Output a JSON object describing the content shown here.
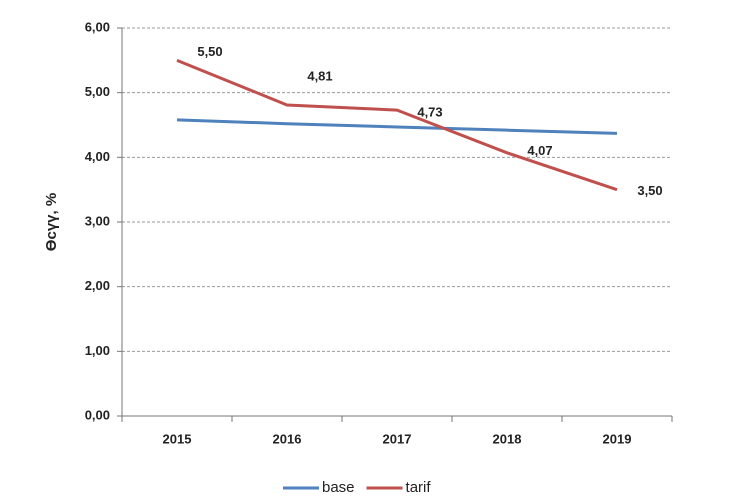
{
  "chart_data": {
    "type": "line",
    "y_label": "Өсүү, %",
    "categories": [
      "2015",
      "2016",
      "2017",
      "2018",
      "2019"
    ],
    "series": [
      {
        "name": "base",
        "color": "#4f81bd",
        "values": [
          4.58,
          4.52,
          4.47,
          4.42,
          4.37
        ]
      },
      {
        "name": "tarif",
        "color": "#c0504d",
        "values": [
          5.5,
          4.81,
          4.73,
          4.07,
          3.5
        ],
        "value_labels": [
          "5,50",
          "4,81",
          "4,73",
          "4,07",
          "3,50"
        ]
      }
    ],
    "ylim": [
      0,
      6
    ],
    "yticks": [
      {
        "value": 0,
        "label": "0,00"
      },
      {
        "value": 1,
        "label": "1,00"
      },
      {
        "value": 2,
        "label": "2,00"
      },
      {
        "value": 3,
        "label": "3,00"
      },
      {
        "value": 4,
        "label": "4,00"
      },
      {
        "value": 5,
        "label": "5,00"
      },
      {
        "value": 6,
        "label": "6,00"
      }
    ],
    "grid": true,
    "legend": "bottom"
  }
}
